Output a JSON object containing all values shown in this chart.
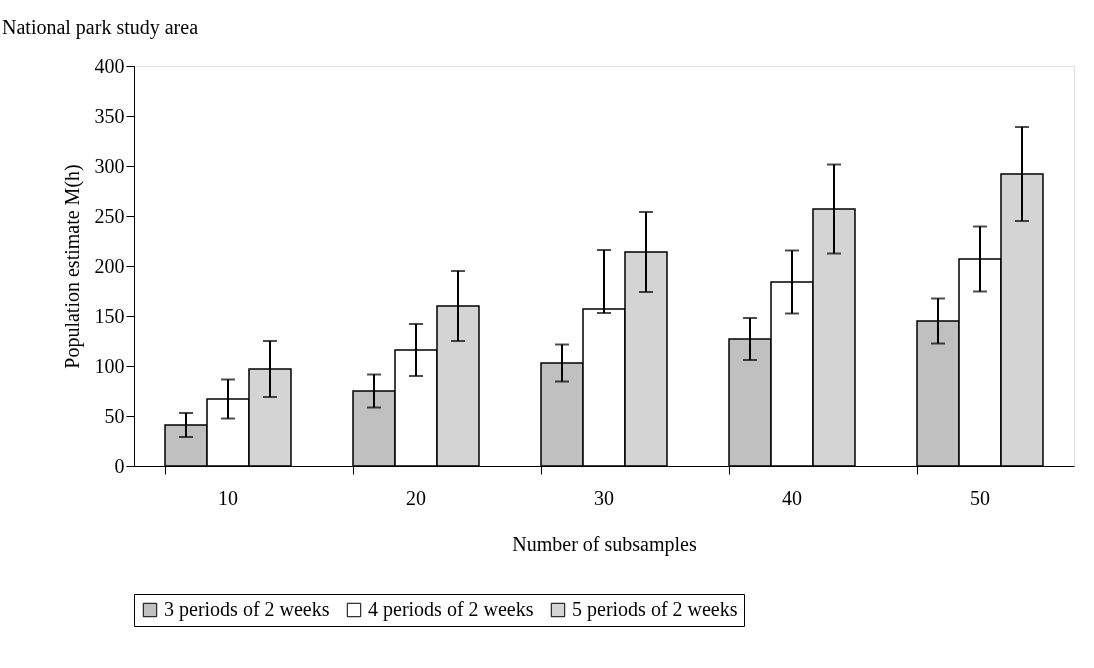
{
  "chart_data": {
    "type": "bar",
    "title": "National park study area",
    "xlabel": "Number of subsamples",
    "ylabel": "Population estimate M(h)",
    "categories": [
      "10",
      "20",
      "30",
      "40",
      "50"
    ],
    "series": [
      {
        "name": "3 periods of 2 weeks",
        "color": "#c0c0c0",
        "values": [
          41,
          75,
          103,
          127,
          145
        ],
        "errors": [
          12,
          16.5,
          18.5,
          21,
          22.5
        ]
      },
      {
        "name": "4 periods of 2 weeks",
        "color": "#ffffff",
        "values": [
          67,
          116,
          157,
          184,
          207
        ],
        "errors": [
          19.5,
          26,
          [
            153,
            216
          ],
          31.5,
          32.5
        ]
      },
      {
        "name": "5 periods of 2 weeks",
        "color": "#d4d4d4",
        "values": [
          97,
          160,
          214,
          257,
          292
        ],
        "errors": [
          28,
          35,
          40,
          44.5,
          47
        ]
      }
    ],
    "ylim": [
      0,
      400
    ],
    "yticks": [
      0,
      50,
      100,
      150,
      200,
      250,
      300,
      350,
      400
    ],
    "grid": false,
    "legend": "bottom"
  }
}
